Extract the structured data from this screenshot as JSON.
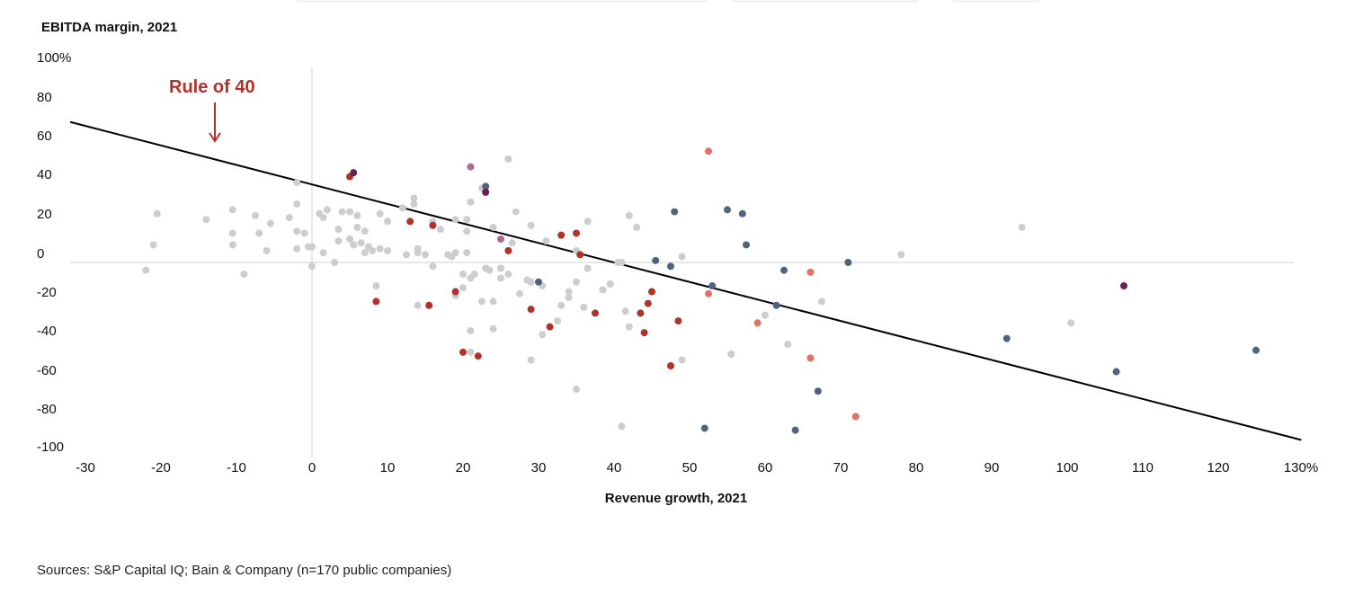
{
  "chart_data": {
    "type": "scatter",
    "ylabel": "EBITDA margin, 2021",
    "xlabel": "Revenue growth, 2021",
    "xlim": [
      -32,
      131
    ],
    "ylim": [
      -100,
      100
    ],
    "x_ticks": [
      "-30",
      "-20",
      "-10",
      "0",
      "10",
      "20",
      "30",
      "40",
      "50",
      "60",
      "70",
      "80",
      "90",
      "100",
      "110",
      "120",
      "130%"
    ],
    "x_tick_values": [
      -30,
      -20,
      -10,
      0,
      10,
      20,
      30,
      40,
      50,
      60,
      70,
      80,
      90,
      100,
      110,
      120,
      130
    ],
    "y_ticks": [
      "100%",
      "80",
      "60",
      "40",
      "20",
      "0",
      "-20",
      "-40",
      "-60",
      "-80",
      "-100"
    ],
    "y_tick_values": [
      100,
      80,
      60,
      40,
      20,
      0,
      -20,
      -40,
      -60,
      -80,
      -100
    ],
    "zero_lines": true,
    "annotation": {
      "text": "Rule of 40",
      "color": "#b0322a"
    },
    "rule_line": {
      "x": [
        -32,
        131
      ],
      "y": [
        72,
        -91
      ]
    },
    "colors": {
      "gray": "#cdcdcd",
      "red": "#b0322a",
      "salmon": "#e3716a",
      "slate": "#4f647c",
      "plum": "#6d1f4e",
      "mauve": "#ad6b90",
      "axis": "#d0d0d0",
      "line": "#000000"
    },
    "series": [
      {
        "color": "gray",
        "points": [
          [
            -22,
            -4
          ],
          [
            -21,
            9
          ],
          [
            -20.5,
            25
          ],
          [
            -14,
            22
          ],
          [
            -10.5,
            27
          ],
          [
            -10.5,
            15
          ],
          [
            -10.5,
            9
          ],
          [
            -9,
            -6
          ],
          [
            -7.5,
            24
          ],
          [
            -7,
            15
          ],
          [
            -5.5,
            20
          ],
          [
            -6,
            6
          ],
          [
            -3,
            23
          ],
          [
            -2,
            30
          ],
          [
            -2,
            41
          ],
          [
            -2,
            16
          ],
          [
            -2,
            7
          ],
          [
            -1,
            15
          ],
          [
            -0.5,
            8
          ],
          [
            0,
            8
          ],
          [
            0,
            -2
          ],
          [
            1,
            25
          ],
          [
            1.5,
            23
          ],
          [
            1.5,
            5
          ],
          [
            2,
            27
          ],
          [
            3,
            0
          ],
          [
            3.5,
            17
          ],
          [
            3.5,
            11
          ],
          [
            4,
            26
          ],
          [
            5,
            26
          ],
          [
            5,
            12
          ],
          [
            5.5,
            9
          ],
          [
            6,
            18
          ],
          [
            6,
            24
          ],
          [
            6.5,
            10
          ],
          [
            7,
            16
          ],
          [
            7,
            5
          ],
          [
            7.5,
            8
          ],
          [
            8,
            6
          ],
          [
            8.5,
            -12
          ],
          [
            9,
            7
          ],
          [
            9,
            25
          ],
          [
            10,
            21
          ],
          [
            10,
            6
          ],
          [
            12,
            28
          ],
          [
            12.5,
            4
          ],
          [
            13.5,
            33
          ],
          [
            13.5,
            30
          ],
          [
            14,
            7
          ],
          [
            14,
            5
          ],
          [
            14,
            -22
          ],
          [
            15,
            4
          ],
          [
            16,
            21
          ],
          [
            16,
            -2
          ],
          [
            17,
            17
          ],
          [
            18,
            4
          ],
          [
            18.5,
            3
          ],
          [
            19,
            -17
          ],
          [
            19,
            22
          ],
          [
            19,
            5
          ],
          [
            20,
            -6
          ],
          [
            20,
            -13
          ],
          [
            20.5,
            5
          ],
          [
            20.5,
            16
          ],
          [
            21,
            -35
          ],
          [
            21,
            -46
          ],
          [
            20.5,
            22
          ],
          [
            21,
            31
          ],
          [
            21,
            -8
          ],
          [
            21.5,
            -6
          ],
          [
            22.5,
            -20
          ],
          [
            22.5,
            38
          ],
          [
            23,
            -3
          ],
          [
            23.5,
            -4
          ],
          [
            24,
            -20
          ],
          [
            24,
            -34
          ],
          [
            24,
            18
          ],
          [
            25,
            -8
          ],
          [
            25,
            -3
          ],
          [
            26,
            -6
          ],
          [
            26.5,
            10
          ],
          [
            26,
            53
          ],
          [
            27,
            26
          ],
          [
            27.5,
            -16
          ],
          [
            28.5,
            -9
          ],
          [
            29,
            -10
          ],
          [
            29,
            19
          ],
          [
            29,
            -50
          ],
          [
            30.5,
            -37
          ],
          [
            30.5,
            -12
          ],
          [
            31,
            11
          ],
          [
            32.5,
            -30
          ],
          [
            33,
            -22
          ],
          [
            34,
            -15
          ],
          [
            34,
            -18
          ],
          [
            35,
            -65
          ],
          [
            35,
            6
          ],
          [
            35,
            -10
          ],
          [
            36,
            -23
          ],
          [
            36.5,
            21
          ],
          [
            36.5,
            -3
          ],
          [
            38.5,
            -14
          ],
          [
            39.5,
            -11
          ],
          [
            40.5,
            0
          ],
          [
            41,
            0
          ],
          [
            41.5,
            -25
          ],
          [
            42,
            -33
          ],
          [
            42,
            24
          ],
          [
            43,
            18
          ],
          [
            41,
            -84
          ],
          [
            49,
            -50
          ],
          [
            49,
            3
          ],
          [
            55.5,
            -47
          ],
          [
            60,
            -27
          ],
          [
            63,
            -42
          ],
          [
            67.5,
            -20
          ],
          [
            78,
            4
          ],
          [
            94,
            18
          ],
          [
            100.5,
            -31
          ]
        ]
      },
      {
        "color": "red",
        "points": [
          [
            5,
            44
          ],
          [
            8.5,
            -20
          ],
          [
            13,
            21
          ],
          [
            15.5,
            -22
          ],
          [
            16,
            19
          ],
          [
            19,
            -15
          ],
          [
            20,
            -46
          ],
          [
            22,
            -48
          ],
          [
            26,
            6
          ],
          [
            29,
            -24
          ],
          [
            31.5,
            -33
          ],
          [
            33,
            14
          ],
          [
            35,
            15
          ],
          [
            35.5,
            4
          ],
          [
            37.5,
            -26
          ],
          [
            43.5,
            -26
          ],
          [
            44,
            -36
          ],
          [
            44.5,
            -21
          ],
          [
            45,
            -15
          ],
          [
            47.5,
            -53
          ],
          [
            48.5,
            -30
          ]
        ]
      },
      {
        "color": "salmon",
        "points": [
          [
            52.5,
            57
          ],
          [
            52.5,
            -16
          ],
          [
            59,
            -31
          ],
          [
            66,
            -5
          ],
          [
            66,
            -49
          ],
          [
            72,
            -79
          ]
        ]
      },
      {
        "color": "slate",
        "points": [
          [
            23,
            39
          ],
          [
            30,
            -10
          ],
          [
            45.5,
            1
          ],
          [
            47.5,
            -2
          ],
          [
            48,
            26
          ],
          [
            52,
            -85
          ],
          [
            53,
            -12
          ],
          [
            55,
            27
          ],
          [
            57,
            25
          ],
          [
            57.5,
            9
          ],
          [
            61.5,
            -22
          ],
          [
            62.5,
            -4
          ],
          [
            64,
            -86
          ],
          [
            67,
            -66
          ],
          [
            71,
            0
          ],
          [
            92,
            -39
          ],
          [
            106.5,
            -56
          ],
          [
            125,
            -45
          ]
        ]
      },
      {
        "color": "plum",
        "points": [
          [
            5.5,
            46
          ],
          [
            23,
            36
          ],
          [
            107.5,
            -12
          ]
        ]
      },
      {
        "color": "mauve",
        "points": [
          [
            21,
            49
          ],
          [
            25,
            12
          ]
        ]
      }
    ]
  },
  "footer": {
    "source": "Sources: S&P Capital IQ; Bain & Company (n=170 public companies)"
  }
}
